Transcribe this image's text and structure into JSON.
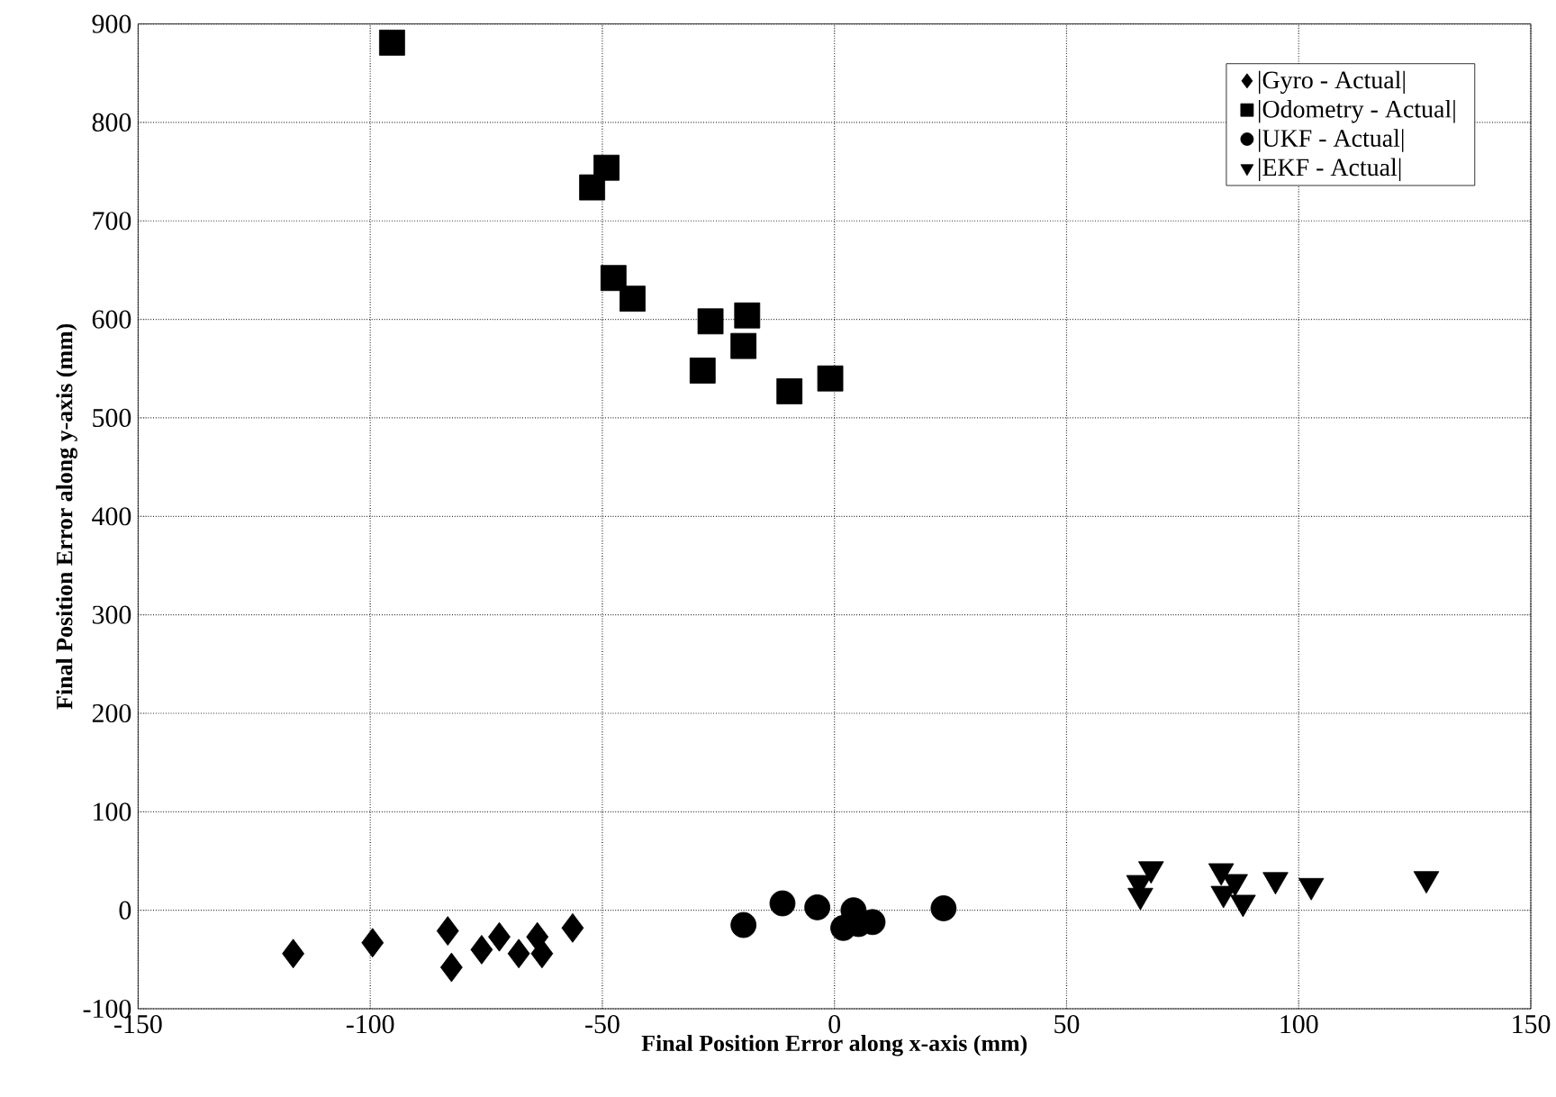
{
  "chart_data": {
    "type": "scatter",
    "xlabel": "Final Position Error along x-axis (mm)",
    "ylabel": "Final Position Error along y-axis (mm)",
    "xlim": [
      -150,
      150
    ],
    "ylim": [
      -100,
      900
    ],
    "xticks": [
      -150,
      -100,
      -50,
      0,
      50,
      100,
      150
    ],
    "yticks": [
      -100,
      0,
      100,
      200,
      300,
      400,
      500,
      600,
      700,
      800,
      900
    ],
    "grid": true,
    "legend": "top right",
    "series": [
      {
        "name": "|Gyro - Actual|",
        "color": "#000000",
        "marker": "diamond",
        "x": [
          -116.6,
          -99.5,
          -83.3,
          -82.5,
          -76,
          -72.2,
          -68,
          -64,
          -63,
          -56.4
        ],
        "values": [
          -44,
          -33,
          -21,
          -58,
          -40,
          -27,
          -44,
          -27,
          -44,
          -18
        ]
      },
      {
        "name": "|Odometry - Actual|",
        "color": "#000000",
        "marker": "square",
        "x": [
          -95.3,
          -49.1,
          -52.2,
          -47.6,
          -43.5,
          -26.7,
          -18.8,
          -19.6,
          -28.4,
          -9.7,
          -0.9
        ],
        "values": [
          881,
          754,
          734,
          642,
          621,
          598,
          604,
          573,
          548,
          527,
          540
        ]
      },
      {
        "name": "|UKF - Actual|",
        "color": "#000000",
        "marker": "circle",
        "x": [
          -19.6,
          -11.2,
          -3.7,
          4.1,
          1.9,
          5.2,
          8.2,
          23.5
        ],
        "values": [
          -15,
          7,
          3,
          0,
          -18,
          -14,
          -12,
          2
        ]
      },
      {
        "name": "|EKF - Actual|",
        "color": "#000000",
        "marker": "triangle",
        "x": [
          65.6,
          68.2,
          65.9,
          83.3,
          83.8,
          86.3,
          88,
          95,
          102.7,
          127.5
        ],
        "values": [
          28,
          42,
          15,
          40,
          17,
          29,
          8,
          31,
          25,
          32
        ]
      }
    ]
  }
}
